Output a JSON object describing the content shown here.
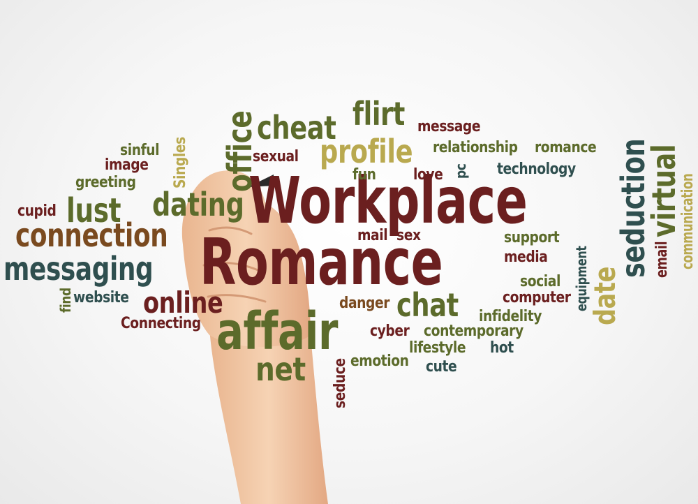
{
  "colors": {
    "background": "#f4f4f4",
    "maroon": "#6b1f1f",
    "olive": "#5c6b2b",
    "teal": "#2f4f4f",
    "khaki": "#b9a94f",
    "brown": "#7a4a1f",
    "skin": "#f1c9a4"
  },
  "words": [
    {
      "key": "workplace",
      "text": "Workplace"
    },
    {
      "key": "romance",
      "text": "Romance"
    },
    {
      "key": "affair",
      "text": "affair"
    },
    {
      "key": "net",
      "text": "net"
    },
    {
      "key": "online",
      "text": "online"
    },
    {
      "key": "connecting",
      "text": "Connecting"
    },
    {
      "key": "website",
      "text": "website"
    },
    {
      "key": "find",
      "text": "find"
    },
    {
      "key": "messaging",
      "text": "messaging"
    },
    {
      "key": "connection",
      "text": "connection"
    },
    {
      "key": "cupid",
      "text": "cupid"
    },
    {
      "key": "lust",
      "text": "lust"
    },
    {
      "key": "dating",
      "text": "dating"
    },
    {
      "key": "greeting",
      "text": "greeting"
    },
    {
      "key": "image",
      "text": "image"
    },
    {
      "key": "sinful",
      "text": "sinful"
    },
    {
      "key": "singles",
      "text": "Singles"
    },
    {
      "key": "office",
      "text": "office"
    },
    {
      "key": "cheat",
      "text": "cheat"
    },
    {
      "key": "flirt",
      "text": "flirt"
    },
    {
      "key": "message",
      "text": "message"
    },
    {
      "key": "sexual",
      "text": "sexual"
    },
    {
      "key": "profile",
      "text": "profile"
    },
    {
      "key": "relationship",
      "text": "relationship"
    },
    {
      "key": "romance_small",
      "text": "romance"
    },
    {
      "key": "fun",
      "text": "fun"
    },
    {
      "key": "love",
      "text": "love"
    },
    {
      "key": "pc",
      "text": "pc"
    },
    {
      "key": "technology",
      "text": "technology"
    },
    {
      "key": "seduction",
      "text": "seduction"
    },
    {
      "key": "virtual",
      "text": "virtual"
    },
    {
      "key": "communication",
      "text": "communication"
    },
    {
      "key": "email",
      "text": "email"
    },
    {
      "key": "mail",
      "text": "mail"
    },
    {
      "key": "sex",
      "text": "sex"
    },
    {
      "key": "support",
      "text": "support"
    },
    {
      "key": "media",
      "text": "media"
    },
    {
      "key": "equipment",
      "text": "equipment"
    },
    {
      "key": "date",
      "text": "date"
    },
    {
      "key": "social",
      "text": "social"
    },
    {
      "key": "computer",
      "text": "computer"
    },
    {
      "key": "infidelity",
      "text": "infidelity"
    },
    {
      "key": "danger",
      "text": "danger"
    },
    {
      "key": "chat",
      "text": "chat"
    },
    {
      "key": "cyber",
      "text": "cyber"
    },
    {
      "key": "contemporary",
      "text": "contemporary"
    },
    {
      "key": "lifestyle",
      "text": "lifestyle"
    },
    {
      "key": "hot",
      "text": "hot"
    },
    {
      "key": "emotion",
      "text": "emotion"
    },
    {
      "key": "cute",
      "text": "cute"
    },
    {
      "key": "seduce",
      "text": "seduce"
    }
  ]
}
